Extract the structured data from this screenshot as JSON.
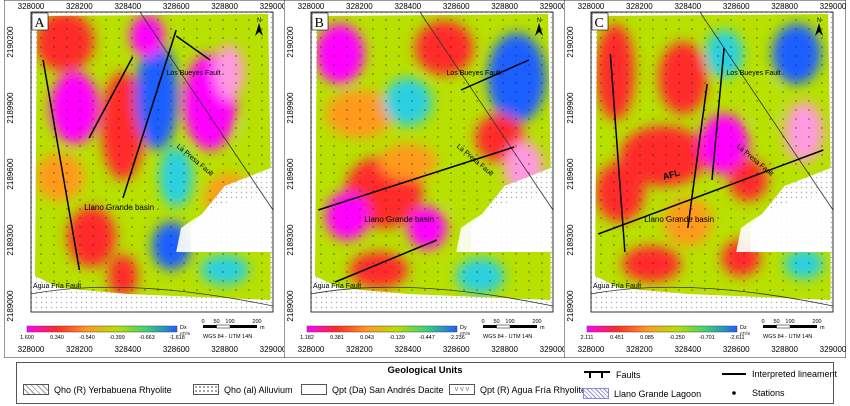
{
  "panels": [
    {
      "label": "A",
      "scale_unit": "Dx\nnT/m",
      "scale_ticks": [
        "1.600",
        "0.340",
        "-0.540",
        "-0.399",
        "-0.663",
        "-1.618"
      ],
      "scale_colors": [
        "#ff00ff",
        "#ff2a2a",
        "#ff9a1e",
        "#b8e000",
        "#3ad07a",
        "#1e5fff"
      ],
      "faults_label": "A",
      "show_afl": false
    },
    {
      "label": "B",
      "scale_unit": "Dy\nnT/m",
      "scale_ticks": [
        "1.182",
        "0.381",
        "0.043",
        "-0.139",
        "-0.447",
        "-2.236"
      ],
      "scale_colors": [
        "#ff00ff",
        "#ff2a2a",
        "#ff9a1e",
        "#b8e000",
        "#3ad07a",
        "#1e5fff"
      ],
      "faults_label": "B",
      "show_afl": false
    },
    {
      "label": "C",
      "scale_unit": "Dz\nnT/m",
      "scale_ticks": [
        "2.111",
        "0.451",
        "0.085",
        "-0.250",
        "-0.701",
        "-2.611"
      ],
      "scale_colors": [
        "#ff00ff",
        "#ff2a2a",
        "#ff9a1e",
        "#b8e000",
        "#3ad07a",
        "#1e5fff"
      ],
      "faults_label": "C",
      "show_afl": true
    }
  ],
  "map_labels": {
    "x_ticks": [
      "328000",
      "328200",
      "328400",
      "328600",
      "328800",
      "329000"
    ],
    "y_ticks": [
      "2190200",
      "2189900",
      "2189600",
      "2189300",
      "2189000"
    ],
    "basin": "Llano Grande basin",
    "los_bueyes": "Los Bueyes Fault",
    "la_presa": "La Presa Fault",
    "agua_fria": "Agua Fría Fault",
    "afl": "AFL",
    "north": "N",
    "scalebar_ticks": [
      "0",
      "50",
      "100",
      "200"
    ],
    "scalebar_unit": "m",
    "datum": "WGS 84 - UTM 14N"
  },
  "legend": {
    "title": "Geological Units",
    "qho_r": "Qho (R) Yerbabuena Rhyolite",
    "qho_al": "Qho (al) Alluvium",
    "qpt_da": "Qpt (Da) San Andrés Dacite",
    "qpt_r": "Qpt (R) Agua Fría Rhyolite",
    "faults": "Faults",
    "lagoon": "Llano Grande Lagoon",
    "lineament": "Interpreted lineament",
    "stations": "Stations"
  }
}
